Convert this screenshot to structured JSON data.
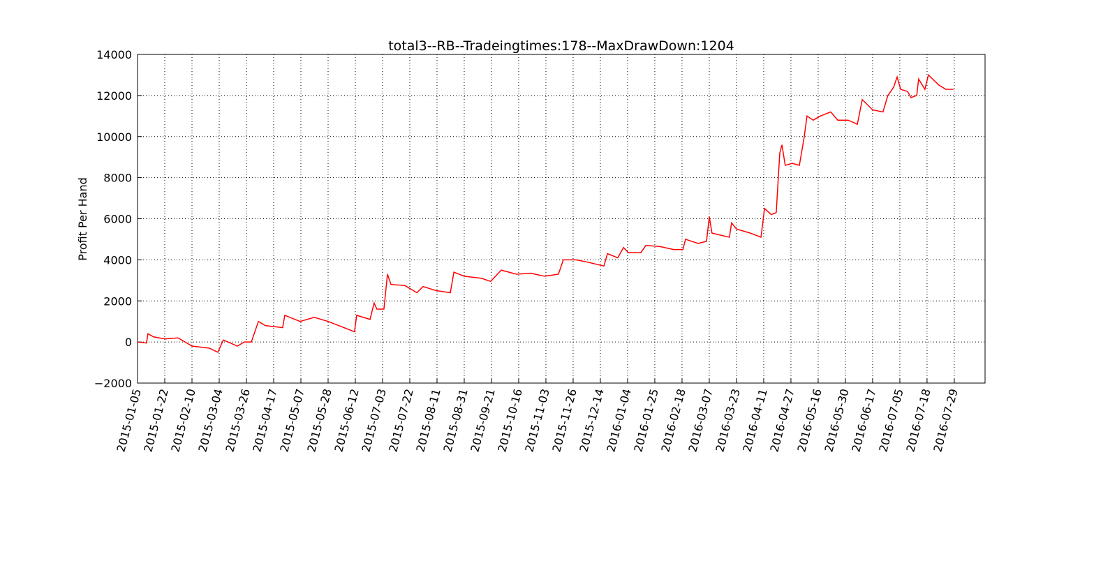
{
  "chart_data": {
    "type": "line",
    "title": "total3--RB--Tradeingtimes:178--MaxDrawDown:1204",
    "y_label": "Profit Per Hand",
    "grid": true,
    "xlim": [
      0,
      31.13
    ],
    "xticks": [
      {
        "value": 0,
        "label": "2015-01-05"
      },
      {
        "value": 1,
        "label": "2015-01-22"
      },
      {
        "value": 2,
        "label": "2015-02-10"
      },
      {
        "value": 3,
        "label": "2015-03-04"
      },
      {
        "value": 4,
        "label": "2015-03-26"
      },
      {
        "value": 5,
        "label": "2015-04-17"
      },
      {
        "value": 6,
        "label": "2015-05-07"
      },
      {
        "value": 7,
        "label": "2015-05-28"
      },
      {
        "value": 8,
        "label": "2015-06-12"
      },
      {
        "value": 9,
        "label": "2015-07-03"
      },
      {
        "value": 10,
        "label": "2015-07-22"
      },
      {
        "value": 11,
        "label": "2015-08-11"
      },
      {
        "value": 12,
        "label": "2015-08-31"
      },
      {
        "value": 13,
        "label": "2015-09-21"
      },
      {
        "value": 14,
        "label": "2015-10-16"
      },
      {
        "value": 15,
        "label": "2015-11-03"
      },
      {
        "value": 16,
        "label": "2015-11-26"
      },
      {
        "value": 17,
        "label": "2015-12-14"
      },
      {
        "value": 18,
        "label": "2016-01-04"
      },
      {
        "value": 19,
        "label": "2016-01-25"
      },
      {
        "value": 20,
        "label": "2016-02-18"
      },
      {
        "value": 21,
        "label": "2016-03-07"
      },
      {
        "value": 22,
        "label": "2016-03-23"
      },
      {
        "value": 23,
        "label": "2016-04-11"
      },
      {
        "value": 24,
        "label": "2016-04-27"
      },
      {
        "value": 25,
        "label": "2016-05-16"
      },
      {
        "value": 26,
        "label": "2016-05-30"
      },
      {
        "value": 27,
        "label": "2016-06-17"
      },
      {
        "value": 28,
        "label": "2016-07-05"
      },
      {
        "value": 29,
        "label": "2016-07-18"
      },
      {
        "value": 30,
        "label": "2016-07-29"
      }
    ],
    "ylim": [
      -2000,
      14000
    ],
    "yticks": [
      {
        "value": -2000,
        "label": "−2000"
      },
      0,
      2000,
      4000,
      6000,
      8000,
      10000,
      12000,
      14000
    ],
    "x": [
      0,
      0.33,
      0.38,
      0.59,
      1,
      1.49,
      2,
      2.64,
      2.95,
      3.15,
      3.67,
      3.92,
      4.18,
      4.44,
      4.69,
      5.33,
      5.41,
      5.97,
      6.49,
      7,
      7.97,
      8.05,
      8.54,
      8.69,
      8.79,
      9.05,
      9.18,
      9.31,
      9.82,
      10.26,
      10.49,
      10.97,
      11.49,
      11.62,
      12,
      12.64,
      12.97,
      13.36,
      13.92,
      14.44,
      14.95,
      15.46,
      15.64,
      16.1,
      16.49,
      17.13,
      17.26,
      17.64,
      17.85,
      18.03,
      18.49,
      18.67,
      19.18,
      19.69,
      20.03,
      20.13,
      20.59,
      20.9,
      21,
      21.1,
      21.74,
      21.82,
      22,
      22.51,
      22.9,
      23.03,
      23.28,
      23.46,
      23.59,
      23.67,
      23.79,
      24.05,
      24.31,
      24.49,
      24.59,
      24.82,
      25.08,
      25.46,
      25.72,
      26.1,
      26.44,
      26.62,
      27,
      27.38,
      27.56,
      27.77,
      27.9,
      28.03,
      28.28,
      28.41,
      28.62,
      28.69,
      28.92,
      29.05,
      29.44,
      29.69,
      29.97
    ],
    "series": [
      {
        "color": "#ff0000",
        "values": [
          0,
          -50,
          400,
          250,
          150,
          200,
          -200,
          -300,
          -500,
          100,
          -200,
          0,
          0,
          1000,
          800,
          700,
          1300,
          1000,
          1200,
          1000,
          500,
          1300,
          1100,
          1900,
          1600,
          1600,
          3300,
          2800,
          2750,
          2400,
          2700,
          2500,
          2400,
          3400,
          3200,
          3100,
          2950,
          3500,
          3300,
          3350,
          3200,
          3300,
          4000,
          4000,
          3900,
          3700,
          4300,
          4100,
          4600,
          4350,
          4350,
          4700,
          4650,
          4500,
          4500,
          5000,
          4800,
          4900,
          6100,
          5300,
          5100,
          5800,
          5500,
          5300,
          5100,
          6500,
          6200,
          6300,
          9200,
          9600,
          8600,
          8700,
          8600,
          10000,
          11000,
          10800,
          11000,
          11200,
          10800,
          10800,
          10600,
          11800,
          11300,
          11200,
          12000,
          12400,
          12900,
          12300,
          12200,
          11900,
          12000,
          12800,
          12300,
          13000,
          12500,
          12300,
          12300
        ]
      }
    ]
  }
}
